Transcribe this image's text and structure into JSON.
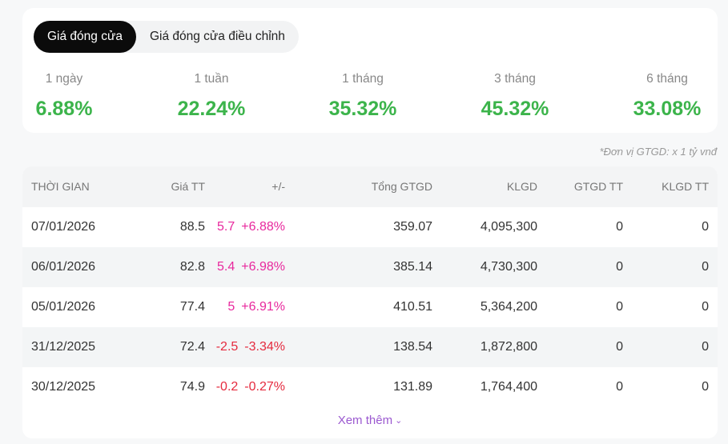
{
  "tabs": [
    {
      "label": "Giá đóng cửa",
      "active": true
    },
    {
      "label": "Giá đóng cửa điều chỉnh",
      "active": false
    }
  ],
  "periods": [
    {
      "label": "1 ngày",
      "value": "6.88%"
    },
    {
      "label": "1 tuần",
      "value": "22.24%"
    },
    {
      "label": "1 tháng",
      "value": "35.32%"
    },
    {
      "label": "3 tháng",
      "value": "45.32%"
    },
    {
      "label": "6 tháng",
      "value": "33.08%"
    }
  ],
  "unit_note": "*Đơn vị GTGD: x 1 tỷ vnđ",
  "table": {
    "headers": {
      "time": "THỜI GIAN",
      "price": "Giá TT",
      "change": "+/-",
      "total": "Tổng GTGD",
      "klgd": "KLGD",
      "gtgd_tt": "GTGD TT",
      "klgd_tt": "KLGD TT"
    },
    "rows": [
      {
        "time": "07/01/2026",
        "price": "88.5",
        "change": "5.7",
        "pct": "+6.88%",
        "dir": "up",
        "total": "359.07",
        "klgd": "4,095,300",
        "gtgd_tt": "0",
        "klgd_tt": "0"
      },
      {
        "time": "06/01/2026",
        "price": "82.8",
        "change": "5.4",
        "pct": "+6.98%",
        "dir": "up",
        "total": "385.14",
        "klgd": "4,730,300",
        "gtgd_tt": "0",
        "klgd_tt": "0"
      },
      {
        "time": "05/01/2026",
        "price": "77.4",
        "change": "5",
        "pct": "+6.91%",
        "dir": "up",
        "total": "410.51",
        "klgd": "5,364,200",
        "gtgd_tt": "0",
        "klgd_tt": "0"
      },
      {
        "time": "31/12/2025",
        "price": "72.4",
        "change": "-2.5",
        "pct": "-3.34%",
        "dir": "down",
        "total": "138.54",
        "klgd": "1,872,800",
        "gtgd_tt": "0",
        "klgd_tt": "0"
      },
      {
        "time": "30/12/2025",
        "price": "74.9",
        "change": "-0.2",
        "pct": "-0.27%",
        "dir": "down",
        "total": "131.89",
        "klgd": "1,764,400",
        "gtgd_tt": "0",
        "klgd_tt": "0"
      }
    ]
  },
  "more_label": "Xem thêm",
  "colors": {
    "positive_pct": "#3cb44b",
    "up": "#e8289d",
    "down": "#e52a3e",
    "link": "#9b59d0"
  }
}
